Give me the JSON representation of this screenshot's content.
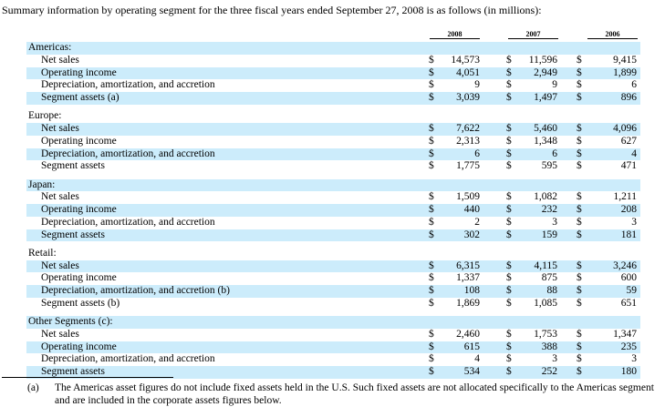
{
  "intro": "Summary information by operating segment for the three fiscal years ended September 27, 2008 is as follows (in millions):",
  "years": [
    "2008",
    "2007",
    "2006"
  ],
  "currency": "$",
  "segments": [
    {
      "name": "Americas:",
      "rows": [
        {
          "label": "Net sales",
          "values": [
            "14,573",
            "11,596",
            "9,415"
          ]
        },
        {
          "label": "Operating income",
          "values": [
            "4,051",
            "2,949",
            "1,899"
          ]
        },
        {
          "label": "Depreciation, amortization, and accretion",
          "values": [
            "9",
            "9",
            "6"
          ]
        },
        {
          "label": "Segment assets (a)",
          "values": [
            "3,039",
            "1,497",
            "896"
          ]
        }
      ]
    },
    {
      "name": "Europe:",
      "rows": [
        {
          "label": "Net sales",
          "values": [
            "7,622",
            "5,460",
            "4,096"
          ]
        },
        {
          "label": "Operating income",
          "values": [
            "2,313",
            "1,348",
            "627"
          ]
        },
        {
          "label": "Depreciation, amortization, and accretion",
          "values": [
            "6",
            "6",
            "4"
          ]
        },
        {
          "label": "Segment assets",
          "values": [
            "1,775",
            "595",
            "471"
          ]
        }
      ]
    },
    {
      "name": "Japan:",
      "rows": [
        {
          "label": "Net sales",
          "values": [
            "1,509",
            "1,082",
            "1,211"
          ]
        },
        {
          "label": "Operating income",
          "values": [
            "440",
            "232",
            "208"
          ]
        },
        {
          "label": "Depreciation, amortization, and accretion",
          "values": [
            "2",
            "3",
            "3"
          ]
        },
        {
          "label": "Segment assets",
          "values": [
            "302",
            "159",
            "181"
          ]
        }
      ]
    },
    {
      "name": "Retail:",
      "rows": [
        {
          "label": "Net sales",
          "values": [
            "6,315",
            "4,115",
            "3,246"
          ]
        },
        {
          "label": "Operating income",
          "values": [
            "1,337",
            "875",
            "600"
          ]
        },
        {
          "label": "Depreciation, amortization, and accretion (b)",
          "values": [
            "108",
            "88",
            "59"
          ]
        },
        {
          "label": "Segment assets (b)",
          "values": [
            "1,869",
            "1,085",
            "651"
          ]
        }
      ]
    },
    {
      "name": "Other Segments (c):",
      "rows": [
        {
          "label": "Net sales",
          "values": [
            "2,460",
            "1,753",
            "1,347"
          ]
        },
        {
          "label": "Operating income",
          "values": [
            "615",
            "388",
            "235"
          ]
        },
        {
          "label": "Depreciation, amortization, and accretion",
          "values": [
            "4",
            "3",
            "3"
          ]
        },
        {
          "label": "Segment assets",
          "values": [
            "534",
            "252",
            "180"
          ]
        }
      ]
    }
  ],
  "footnote": {
    "marker": "(a)",
    "text": "The Americas asset figures do not include fixed assets held in the U.S. Such fixed assets are not allocated specifically to the Americas segment and are included in the corporate assets figures below."
  },
  "colors": {
    "row_shade": "#ccecfb"
  }
}
